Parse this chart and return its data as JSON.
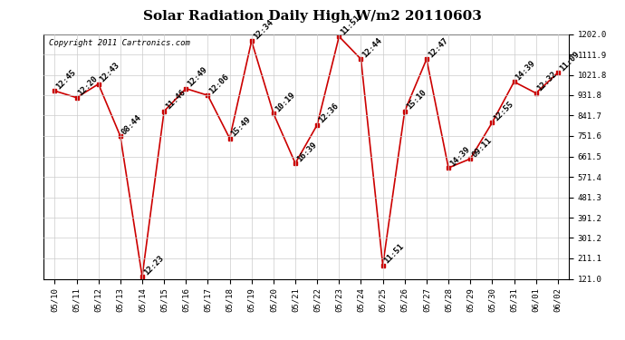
{
  "title": "Solar Radiation Daily High W/m2 20110603",
  "copyright": "Copyright 2011 Cartronics.com",
  "dates": [
    "05/10",
    "05/11",
    "05/12",
    "05/13",
    "05/14",
    "05/15",
    "05/16",
    "05/17",
    "05/18",
    "05/19",
    "05/20",
    "05/21",
    "05/22",
    "05/23",
    "05/24",
    "05/25",
    "05/26",
    "05/27",
    "05/28",
    "05/29",
    "05/30",
    "05/31",
    "06/01",
    "06/02"
  ],
  "values": [
    951,
    921,
    981,
    751,
    131,
    861,
    961,
    931,
    741,
    1171,
    851,
    631,
    801,
    1191,
    1091,
    181,
    861,
    1091,
    611,
    651,
    811,
    991,
    941,
    1031
  ],
  "labels": [
    "12:45",
    "12:20",
    "12:43",
    "08:44",
    "12:23",
    "11:46",
    "12:49",
    "12:06",
    "15:49",
    "12:34",
    "10:19",
    "16:39",
    "12:36",
    "11:51",
    "12:44",
    "11:51",
    "15:10",
    "12:47",
    "14:39",
    "09:11",
    "12:55",
    "14:39",
    "12:32",
    "11:09"
  ],
  "line_color": "#cc0000",
  "marker_color": "#cc0000",
  "background_color": "#ffffff",
  "grid_color": "#cccccc",
  "ylim_min": 121.0,
  "ylim_max": 1202.0,
  "yticks": [
    121.0,
    211.1,
    301.2,
    391.2,
    481.3,
    571.4,
    661.5,
    751.6,
    841.7,
    931.8,
    1021.8,
    1111.9,
    1202.0
  ],
  "title_fontsize": 11,
  "label_fontsize": 6.5,
  "tick_fontsize": 6.5,
  "copyright_fontsize": 6.5
}
